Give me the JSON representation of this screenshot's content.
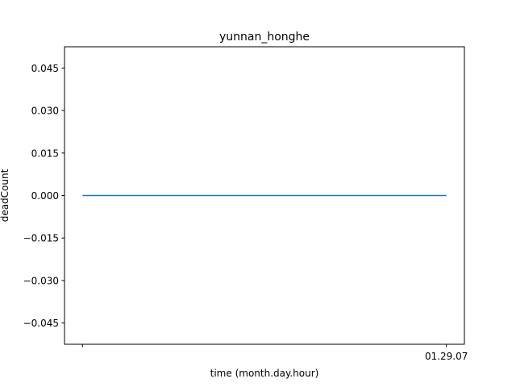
{
  "chart_data": {
    "type": "line",
    "title": "yunnan_honghe",
    "xlabel": "time (month.day.hour)",
    "ylabel": "deadCount",
    "x": [
      "",
      "01.29.07"
    ],
    "x_tick_labels": [
      "",
      "01.29.07"
    ],
    "series": [
      {
        "values": [
          0,
          0
        ],
        "color": "#1f77b4"
      }
    ],
    "ylim": [
      -0.0525,
      0.0525
    ],
    "y_ticks": [
      -0.045,
      -0.03,
      -0.015,
      0.0,
      0.015,
      0.03,
      0.045
    ],
    "y_tick_labels": [
      "−0.045",
      "−0.030",
      "−0.015",
      "0.000",
      "0.015",
      "0.030",
      "0.045"
    ],
    "grid": false,
    "legend": "none"
  }
}
